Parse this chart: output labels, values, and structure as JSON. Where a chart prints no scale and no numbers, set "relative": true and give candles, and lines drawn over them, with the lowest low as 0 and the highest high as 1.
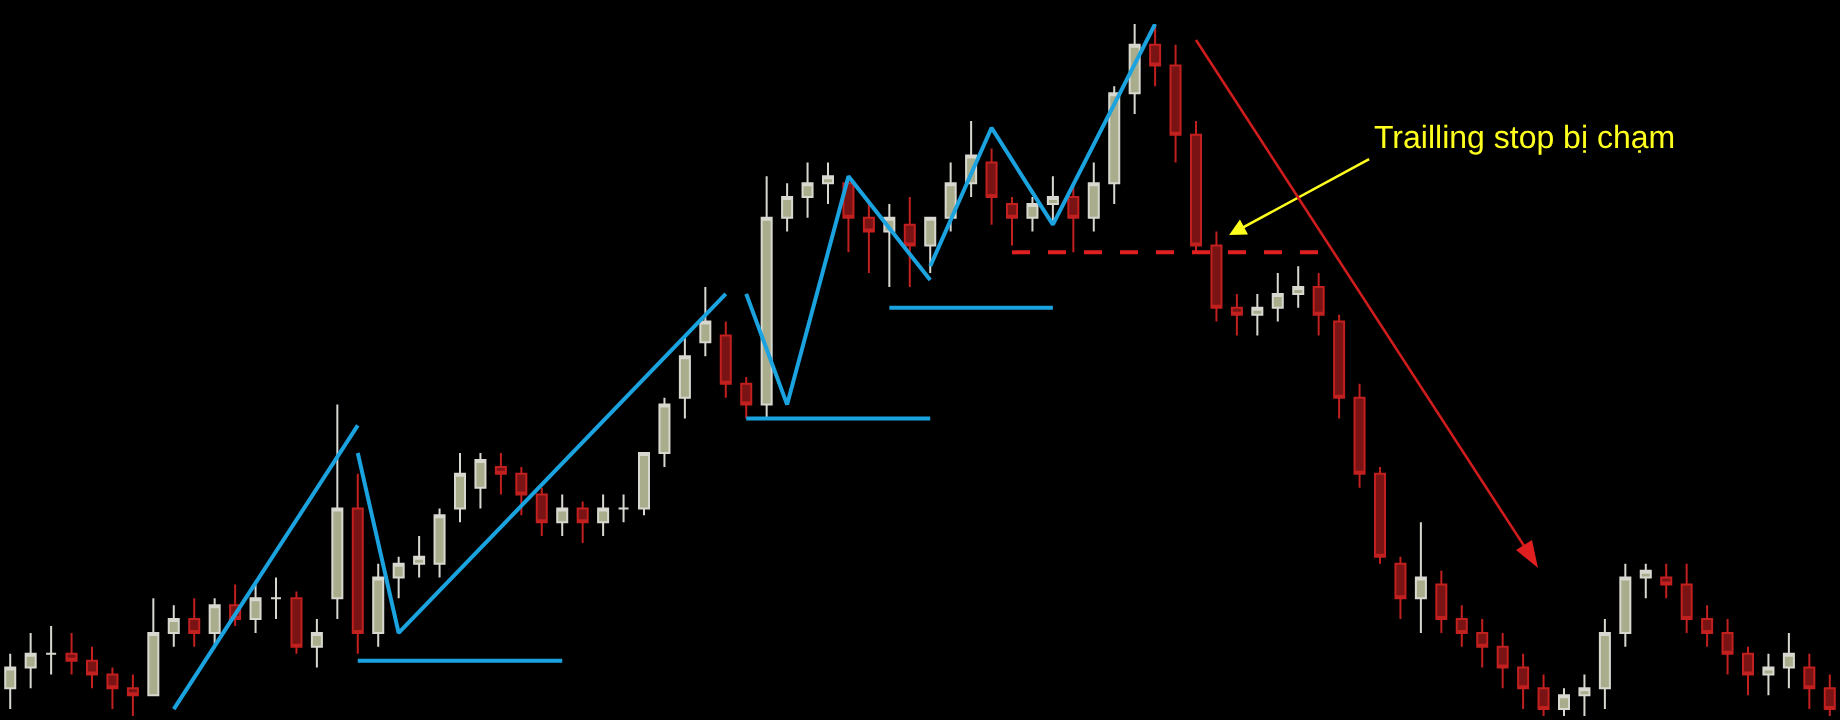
{
  "chart_data": {
    "type": "candlestick",
    "relative": true,
    "categories": [
      null,
      null,
      null,
      null,
      null,
      null,
      null,
      null,
      null,
      null,
      null,
      null,
      null,
      null,
      null,
      null,
      null,
      null,
      null,
      null,
      null,
      null,
      null,
      null,
      null,
      null,
      null,
      null,
      null,
      null,
      null,
      null,
      null,
      null,
      null,
      null,
      null,
      null,
      null,
      null,
      null,
      null,
      null,
      null,
      null,
      null,
      null,
      null,
      null,
      null,
      null,
      null,
      null,
      null,
      null,
      null,
      null,
      null,
      null,
      null,
      null,
      null,
      null,
      null,
      null,
      null,
      null,
      null,
      null,
      null,
      null,
      null,
      null,
      null,
      null,
      null,
      null,
      null,
      null,
      null,
      null,
      null,
      null,
      null,
      null,
      null,
      null,
      null,
      null,
      null
    ],
    "ohlc": [
      [
        0.04,
        0.09,
        0.01,
        0.07
      ],
      [
        0.07,
        0.12,
        0.04,
        0.09
      ],
      [
        0.09,
        0.13,
        0.06,
        0.09
      ],
      [
        0.09,
        0.12,
        0.06,
        0.08
      ],
      [
        0.08,
        0.1,
        0.04,
        0.06
      ],
      [
        0.06,
        0.07,
        0.01,
        0.04
      ],
      [
        0.04,
        0.06,
        0,
        0.03
      ],
      [
        0.03,
        0.17,
        0.03,
        0.12
      ],
      [
        0.12,
        0.16,
        0.1,
        0.14
      ],
      [
        0.14,
        0.17,
        0.1,
        0.12
      ],
      [
        0.12,
        0.17,
        0.1,
        0.16
      ],
      [
        0.16,
        0.19,
        0.13,
        0.14
      ],
      [
        0.14,
        0.19,
        0.12,
        0.17
      ],
      [
        0.17,
        0.2,
        0.14,
        0.17
      ],
      [
        0.17,
        0.18,
        0.09,
        0.1
      ],
      [
        0.1,
        0.14,
        0.07,
        0.12
      ],
      [
        0.17,
        0.45,
        0.14,
        0.3
      ],
      [
        0.3,
        0.35,
        0.09,
        0.12
      ],
      [
        0.12,
        0.22,
        0.1,
        0.2
      ],
      [
        0.2,
        0.23,
        0.17,
        0.22
      ],
      [
        0.22,
        0.26,
        0.2,
        0.23
      ],
      [
        0.22,
        0.3,
        0.2,
        0.29
      ],
      [
        0.3,
        0.38,
        0.28,
        0.35
      ],
      [
        0.33,
        0.38,
        0.3,
        0.37
      ],
      [
        0.36,
        0.38,
        0.32,
        0.35
      ],
      [
        0.35,
        0.36,
        0.29,
        0.32
      ],
      [
        0.32,
        0.33,
        0.26,
        0.28
      ],
      [
        0.28,
        0.32,
        0.26,
        0.3
      ],
      [
        0.3,
        0.31,
        0.25,
        0.28
      ],
      [
        0.28,
        0.32,
        0.26,
        0.3
      ],
      [
        0.3,
        0.32,
        0.28,
        0.3
      ],
      [
        0.3,
        0.38,
        0.29,
        0.38
      ],
      [
        0.38,
        0.46,
        0.36,
        0.45
      ],
      [
        0.46,
        0.55,
        0.43,
        0.52
      ],
      [
        0.54,
        0.62,
        0.52,
        0.57
      ],
      [
        0.55,
        0.57,
        0.46,
        0.48
      ],
      [
        0.48,
        0.49,
        0.43,
        0.45
      ],
      [
        0.45,
        0.78,
        0.43,
        0.72
      ],
      [
        0.72,
        0.77,
        0.7,
        0.75
      ],
      [
        0.75,
        0.8,
        0.72,
        0.77
      ],
      [
        0.77,
        0.8,
        0.74,
        0.78
      ],
      [
        0.77,
        0.78,
        0.67,
        0.72
      ],
      [
        0.72,
        0.74,
        0.64,
        0.7
      ],
      [
        0.7,
        0.74,
        0.62,
        0.72
      ],
      [
        0.71,
        0.75,
        0.62,
        0.68
      ],
      [
        0.68,
        0.72,
        0.64,
        0.72
      ],
      [
        0.72,
        0.8,
        0.7,
        0.77
      ],
      [
        0.77,
        0.86,
        0.75,
        0.81
      ],
      [
        0.8,
        0.82,
        0.71,
        0.75
      ],
      [
        0.74,
        0.75,
        0.68,
        0.72
      ],
      [
        0.72,
        0.75,
        0.7,
        0.74
      ],
      [
        0.74,
        0.78,
        0.71,
        0.75
      ],
      [
        0.75,
        0.77,
        0.67,
        0.72
      ],
      [
        0.72,
        0.8,
        0.7,
        0.77
      ],
      [
        0.77,
        0.91,
        0.74,
        0.9
      ],
      [
        0.9,
        1.0,
        0.87,
        0.97
      ],
      [
        0.97,
        1.0,
        0.91,
        0.94
      ],
      [
        0.94,
        0.97,
        0.8,
        0.84
      ],
      [
        0.84,
        0.86,
        0.67,
        0.68
      ],
      [
        0.68,
        0.7,
        0.57,
        0.59
      ],
      [
        0.59,
        0.61,
        0.55,
        0.58
      ],
      [
        0.58,
        0.61,
        0.55,
        0.59
      ],
      [
        0.59,
        0.64,
        0.57,
        0.61
      ],
      [
        0.61,
        0.65,
        0.59,
        0.62
      ],
      [
        0.62,
        0.64,
        0.55,
        0.58
      ],
      [
        0.57,
        0.58,
        0.43,
        0.46
      ],
      [
        0.46,
        0.48,
        0.33,
        0.35
      ],
      [
        0.35,
        0.36,
        0.22,
        0.23
      ],
      [
        0.22,
        0.23,
        0.14,
        0.17
      ],
      [
        0.17,
        0.28,
        0.12,
        0.2
      ],
      [
        0.19,
        0.21,
        0.12,
        0.14
      ],
      [
        0.14,
        0.16,
        0.1,
        0.12
      ],
      [
        0.12,
        0.14,
        0.07,
        0.1
      ],
      [
        0.1,
        0.12,
        0.04,
        0.07
      ],
      [
        0.07,
        0.09,
        0.01,
        0.04
      ],
      [
        0.04,
        0.06,
        0,
        0.01
      ],
      [
        0.01,
        0.04,
        0,
        0.03
      ],
      [
        0.03,
        0.06,
        0,
        0.04
      ],
      [
        0.04,
        0.14,
        0.01,
        0.12
      ],
      [
        0.12,
        0.22,
        0.1,
        0.2
      ],
      [
        0.2,
        0.22,
        0.17,
        0.21
      ],
      [
        0.2,
        0.22,
        0.17,
        0.19
      ],
      [
        0.19,
        0.22,
        0.12,
        0.14
      ],
      [
        0.14,
        0.16,
        0.1,
        0.12
      ],
      [
        0.12,
        0.14,
        0.06,
        0.09
      ],
      [
        0.09,
        0.1,
        0.03,
        0.06
      ],
      [
        0.06,
        0.09,
        0.03,
        0.07
      ],
      [
        0.07,
        0.12,
        0.04,
        0.09
      ],
      [
        0.07,
        0.09,
        0.01,
        0.04
      ],
      [
        0.04,
        0.06,
        0,
        0.01
      ]
    ],
    "series": [
      {
        "type": "line",
        "color": "#1ba3e0",
        "values": [
          null,
          null,
          null,
          null,
          null,
          null,
          null,
          null,
          0.01,
          null,
          null,
          null,
          null,
          null,
          null,
          null,
          null,
          0.42,
          null,
          null,
          null,
          null,
          null,
          null,
          null,
          null,
          null,
          null,
          null,
          null,
          null,
          null,
          null,
          null,
          null,
          null,
          null,
          null,
          null,
          null,
          null,
          null,
          null,
          null,
          null,
          null,
          null,
          null,
          null,
          null,
          null,
          null,
          null,
          null,
          null,
          null,
          null,
          null,
          null,
          null,
          null,
          null,
          null,
          null,
          null,
          null,
          null,
          null,
          null,
          null,
          null,
          null,
          null,
          null,
          null,
          null,
          null,
          null,
          null,
          null,
          null,
          null,
          null,
          null,
          null,
          null,
          null,
          null,
          null,
          null
        ]
      },
      {
        "type": "line",
        "color": "#1ba3e0",
        "values": [
          null,
          null,
          null,
          null,
          null,
          null,
          null,
          null,
          null,
          null,
          null,
          null,
          null,
          null,
          null,
          null,
          null,
          0.38,
          null,
          0.12,
          null,
          null,
          null,
          null,
          null,
          null,
          null,
          null,
          null,
          null,
          null,
          null,
          null,
          null,
          null,
          0.61,
          null,
          null,
          null,
          null,
          null,
          null,
          null,
          null,
          null,
          null,
          null,
          null,
          null,
          null,
          null,
          null,
          null,
          null,
          null,
          null,
          null,
          null,
          null,
          null,
          null,
          null,
          null,
          null,
          null,
          null,
          null,
          null,
          null,
          null,
          null,
          null,
          null,
          null,
          null,
          null,
          null,
          null,
          null,
          null,
          null,
          null,
          null,
          null,
          null,
          null,
          null,
          null,
          null,
          null
        ]
      },
      {
        "type": "line",
        "color": "#1ba3e0",
        "values": [
          null,
          null,
          null,
          null,
          null,
          null,
          null,
          null,
          null,
          null,
          null,
          null,
          null,
          null,
          null,
          null,
          null,
          0.08,
          null,
          null,
          null,
          null,
          null,
          null,
          null,
          null,
          null,
          0.08,
          null,
          null,
          null,
          null,
          null,
          null,
          null,
          null,
          null,
          null,
          null,
          null,
          null,
          null,
          null,
          null,
          null,
          null,
          null,
          null,
          null,
          null,
          null,
          null,
          null,
          null,
          null,
          null,
          null,
          null,
          null,
          null,
          null,
          null,
          null,
          null,
          null,
          null,
          null,
          null,
          null,
          null,
          null,
          null,
          null,
          null,
          null,
          null,
          null,
          null,
          null,
          null,
          null,
          null,
          null,
          null,
          null,
          null,
          null,
          null,
          null,
          null
        ]
      },
      {
        "type": "line",
        "color": "#1ba3e0",
        "values": [
          null,
          null,
          null,
          null,
          null,
          null,
          null,
          null,
          null,
          null,
          null,
          null,
          null,
          null,
          null,
          null,
          null,
          null,
          null,
          null,
          null,
          null,
          null,
          null,
          null,
          null,
          null,
          null,
          null,
          null,
          null,
          null,
          null,
          null,
          null,
          null,
          0.61,
          null,
          0.45,
          null,
          null,
          0.78,
          null,
          null,
          null,
          0.63,
          null,
          null,
          null,
          null,
          null,
          null,
          null,
          null,
          null,
          null,
          null,
          null,
          null,
          null,
          null,
          null,
          null,
          null,
          null,
          null,
          null,
          null,
          null,
          null,
          null,
          null,
          null,
          null,
          null,
          null,
          null,
          null,
          null,
          null,
          null,
          null,
          null,
          null,
          null,
          null,
          null,
          null,
          null,
          null
        ]
      },
      {
        "type": "line",
        "color": "#1ba3e0",
        "values": [
          null,
          null,
          null,
          null,
          null,
          null,
          null,
          null,
          null,
          null,
          null,
          null,
          null,
          null,
          null,
          null,
          null,
          null,
          null,
          null,
          null,
          null,
          null,
          null,
          null,
          null,
          null,
          null,
          null,
          null,
          null,
          null,
          null,
          null,
          null,
          null,
          0.43,
          null,
          null,
          null,
          null,
          null,
          null,
          null,
          null,
          0.43,
          null,
          null,
          null,
          null,
          null,
          null,
          null,
          null,
          null,
          null,
          null,
          null,
          null,
          null,
          null,
          null,
          null,
          null,
          null,
          null,
          null,
          null,
          null,
          null,
          null,
          null,
          null,
          null,
          null,
          null,
          null,
          null,
          null,
          null,
          null,
          null,
          null,
          null,
          null,
          null,
          null,
          null,
          null,
          null
        ]
      },
      {
        "type": "line",
        "color": "#1ba3e0",
        "values": [
          null,
          null,
          null,
          null,
          null,
          null,
          null,
          null,
          null,
          null,
          null,
          null,
          null,
          null,
          null,
          null,
          null,
          null,
          null,
          null,
          null,
          null,
          null,
          null,
          null,
          null,
          null,
          null,
          null,
          null,
          null,
          null,
          null,
          null,
          null,
          null,
          null,
          null,
          null,
          null,
          null,
          null,
          null,
          null,
          null,
          0.65,
          null,
          null,
          0.85,
          null,
          null,
          0.71,
          null,
          null,
          null,
          null,
          1.0,
          null,
          null,
          null,
          null,
          null,
          null,
          null,
          null,
          null,
          null,
          null,
          null,
          null,
          null,
          null,
          null,
          null,
          null,
          null,
          null,
          null,
          null,
          null,
          null,
          null,
          null,
          null,
          null,
          null,
          null,
          null,
          null,
          null
        ]
      },
      {
        "type": "line",
        "color": "#1ba3e0",
        "values": [
          null,
          null,
          null,
          null,
          null,
          null,
          null,
          null,
          null,
          null,
          null,
          null,
          null,
          null,
          null,
          null,
          null,
          null,
          null,
          null,
          null,
          null,
          null,
          null,
          null,
          null,
          null,
          null,
          null,
          null,
          null,
          null,
          null,
          null,
          null,
          null,
          null,
          null,
          null,
          null,
          null,
          null,
          null,
          0.59,
          null,
          null,
          null,
          null,
          null,
          null,
          null,
          0.59,
          null,
          null,
          null,
          null,
          null,
          null,
          null,
          null,
          null,
          null,
          null,
          null,
          null,
          null,
          null,
          null,
          null,
          null,
          null,
          null,
          null,
          null,
          null,
          null,
          null,
          null,
          null,
          null,
          null,
          null,
          null,
          null,
          null,
          null,
          null,
          null,
          null,
          null
        ]
      },
      {
        "type": "line",
        "color": "#e02020",
        "line_style": "dashed",
        "values": [
          null,
          null,
          null,
          null,
          null,
          null,
          null,
          null,
          null,
          null,
          null,
          null,
          null,
          null,
          null,
          null,
          null,
          null,
          null,
          null,
          null,
          null,
          null,
          null,
          null,
          null,
          null,
          null,
          null,
          null,
          null,
          null,
          null,
          null,
          null,
          null,
          null,
          null,
          null,
          null,
          null,
          null,
          null,
          null,
          null,
          null,
          null,
          null,
          null,
          0.67,
          null,
          null,
          null,
          null,
          null,
          null,
          null,
          null,
          null,
          null,
          null,
          null,
          null,
          null,
          0.67,
          null,
          null,
          null,
          null,
          null,
          null,
          null,
          null,
          null,
          null,
          null,
          null,
          null,
          null,
          null,
          null,
          null,
          null,
          null,
          null,
          null,
          null,
          null,
          null,
          null
        ]
      }
    ],
    "annotations": [
      "Trailling stop bị chạm"
    ],
    "grid": false
  }
}
